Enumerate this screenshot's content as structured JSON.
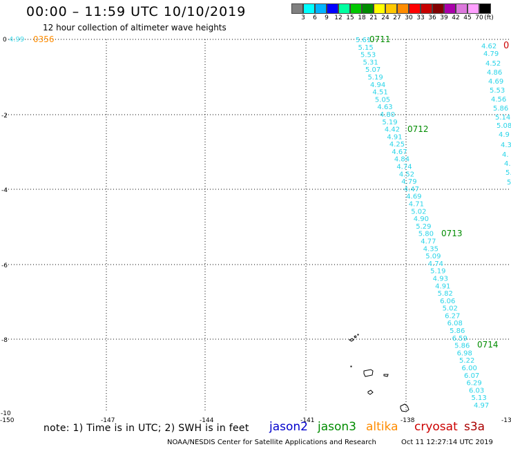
{
  "header": {
    "title": "00:00 – 11:59 UTC 10/10/2019",
    "subtitle": "12 hour collection of altimeter wave heights"
  },
  "color_scale": {
    "colors": [
      "#808080",
      "#00ffff",
      "#00b4ff",
      "#0000ff",
      "#00ffa0",
      "#00c800",
      "#008c00",
      "#ffff00",
      "#ffc800",
      "#ff8c00",
      "#ff0000",
      "#c80000",
      "#820000",
      "#aa00aa",
      "#dc78dc",
      "#ffa0ff",
      "#000000"
    ],
    "labels": [
      "3",
      "6",
      "9",
      "12",
      "15",
      "18",
      "21",
      "24",
      "27",
      "30",
      "33",
      "36",
      "39",
      "42",
      "45",
      "70",
      "(ft)"
    ]
  },
  "map": {
    "lat_labels": [
      "0",
      "-2",
      "-4",
      "-6",
      "-8",
      "-10"
    ],
    "lon_labels": [
      "-150",
      "-147",
      "-144",
      "-141",
      "-138",
      "-13"
    ],
    "left_corner_swh": "4.99",
    "left_corner_time": "0356",
    "right_edge_time": "0",
    "track_a": {
      "swh": [
        "5.61",
        "5.15",
        "5.53",
        "5.31",
        "5.07",
        "5.19",
        "4.94",
        "4.51",
        "5.05",
        "4.63",
        "4.80",
        "5.19",
        "4.42",
        "4.91",
        "4.25",
        "4.67",
        "4.84",
        "4.74",
        "4.52",
        "4.79",
        "4.47",
        "4.69",
        "4.71",
        "5.02",
        "4.90",
        "5.29",
        "5.80",
        "4.77",
        "4.35",
        "5.09",
        "4.74",
        "5.19",
        "4.93",
        "4.91",
        "5.82",
        "6.06",
        "5.02",
        "6.27",
        "6.08",
        "5.86",
        "6.59",
        "5.86",
        "6.98",
        "5.22",
        "6.00",
        "6.07",
        "6.29",
        "6.03",
        "5.13",
        "4.97"
      ],
      "times": [
        "0711",
        "0712",
        "0713",
        "0714"
      ]
    },
    "track_b": {
      "swh": [
        "4.62",
        "4.79",
        "4.52",
        "4.86",
        "4.69",
        "5.53",
        "4.56",
        "5.86",
        "5.14",
        "5.08",
        "4.9",
        "4.3",
        "4.",
        "4.",
        "5.",
        "5"
      ]
    }
  },
  "footer": {
    "note": "note: 1) Time is in UTC; 2) SWH is in feet",
    "missions": {
      "jason2": "jason2",
      "jason3": "jason3",
      "altika": "altika",
      "cryosat": "cryosat",
      "s3a": "s3a"
    },
    "mission_colors": {
      "jason2": "#0000cc",
      "jason3": "#008c00",
      "altika": "#ff8c00",
      "cryosat": "#cc0000",
      "s3a": "#aa0000"
    },
    "credit": "NOAA/NESDIS Center for Satellite Applications and Research",
    "timestamp": "Oct 11 12:27:14 UTC 2019"
  }
}
